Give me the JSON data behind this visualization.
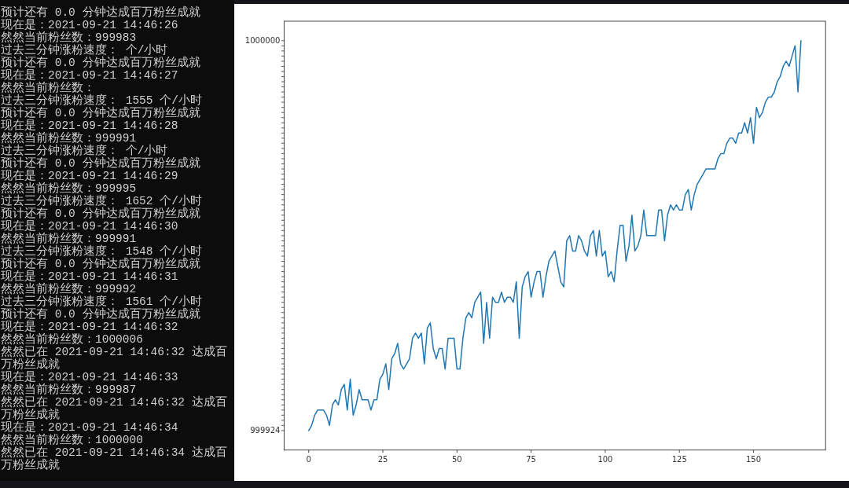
{
  "chart_data": [
    {
      "type": "other",
      "annotations": [
        "预计还有 0.0 分钟达成百万粉丝成就",
        "现在是：2021-09-21 14:46:26",
        "然然当前粉丝数：999983",
        "过去三分钟涨粉速度： 个/小时",
        "预计还有 0.0 分钟达成百万粉丝成就",
        "现在是：2021-09-21 14:46:27",
        "然然当前粉丝数：",
        "过去三分钟涨粉速度： 1555 个/小时",
        "预计还有 0.0 分钟达成百万粉丝成就",
        "现在是：2021-09-21 14:46:28",
        "然然当前粉丝数：999991",
        "过去三分钟涨粉速度： 个/小时",
        "预计还有 0.0 分钟达成百万粉丝成就",
        "现在是：2021-09-21 14:46:29",
        "然然当前粉丝数：999995",
        "过去三分钟涨粉速度： 1652 个/小时",
        "预计还有 0.0 分钟达成百万粉丝成就",
        "现在是：2021-09-21 14:46:30",
        "然然当前粉丝数：999991",
        "过去三分钟涨粉速度： 1548 个/小时",
        "预计还有 0.0 分钟达成百万粉丝成就",
        "现在是：2021-09-21 14:46:31",
        "然然当前粉丝数：999992",
        "过去三分钟涨粉速度： 1561 个/小时",
        "预计还有 0.0 分钟达成百万粉丝成就",
        "现在是：2021-09-21 14:46:32",
        "然然当前粉丝数：1000006",
        "然然已在 2021-09-21 14:46:32 达成百",
        "万粉丝成就",
        "现在是：2021-09-21 14:46:33",
        "然然当前粉丝数：999987",
        "然然已在 2021-09-21 14:46:32 达成百",
        "万粉丝成就",
        "现在是：2021-09-21 14:46:34",
        "然然当前粉丝数：1000000",
        "然然已在 2021-09-21 14:46:34 达成百",
        "万粉丝成就"
      ]
    },
    {
      "type": "line",
      "color": "#1f77b4",
      "x": [
        0,
        1,
        2,
        3,
        4,
        5,
        6,
        7,
        8,
        9,
        10,
        11,
        12,
        13,
        14,
        15,
        16,
        17,
        18,
        19,
        20,
        21,
        22,
        23,
        24,
        25,
        26,
        27,
        28,
        29,
        30,
        31,
        32,
        33,
        34,
        35,
        36,
        37,
        38,
        39,
        40,
        41,
        42,
        43,
        44,
        45,
        46,
        47,
        48,
        49,
        50,
        51,
        52,
        53,
        54,
        55,
        56,
        57,
        58,
        59,
        60,
        61,
        62,
        63,
        64,
        65,
        66,
        67,
        68,
        69,
        70,
        71,
        72,
        73,
        74,
        75,
        76,
        77,
        78,
        79,
        80,
        81,
        82,
        83,
        84,
        85,
        86,
        87,
        88,
        89,
        90,
        91,
        92,
        93,
        94,
        95,
        96,
        97,
        98,
        99,
        100,
        101,
        102,
        103,
        104,
        105,
        106,
        107,
        108,
        109,
        110,
        111,
        112,
        113,
        114,
        115,
        116,
        117,
        118,
        119,
        120,
        121,
        122,
        123,
        124,
        125,
        126,
        127,
        128,
        129,
        130,
        131,
        132,
        133,
        134,
        135,
        136,
        137,
        138,
        139,
        140,
        141,
        142,
        143,
        144,
        145,
        146,
        147,
        148,
        149,
        150,
        151,
        152,
        153,
        154,
        155,
        156,
        157,
        158,
        159,
        160,
        161,
        162,
        163,
        164,
        165,
        166
      ],
      "values": [
        999924,
        999925,
        999927,
        999928,
        999928,
        999928,
        999927,
        999925,
        999929,
        999930,
        999929,
        999932,
        999933,
        999928,
        999934,
        999927,
        999929,
        999932,
        999930,
        999930,
        999930,
        999928,
        999930,
        999930,
        999934,
        999935,
        999937,
        999932,
        999938,
        999939,
        999941,
        999937,
        999936,
        999937,
        999938,
        999942,
        999943,
        999942,
        999943,
        999937,
        999944,
        999945,
        999940,
        999938,
        999940,
        999940,
        999936,
        999942,
        999942,
        999942,
        999936,
        999936,
        999942,
        999946,
        999947,
        999946,
        999949,
        999950,
        999951,
        999941,
        999949,
        999942,
        999950,
        999949,
        999949,
        999951,
        999949,
        999950,
        999950,
        999949,
        999953,
        999942,
        999952,
        999954,
        999955,
        999950,
        999953,
        999955,
        999955,
        999950,
        999954,
        999957,
        999958,
        999959,
        999956,
        999953,
        999952,
        999961,
        999962,
        999959,
        999959,
        999962,
        999961,
        999959,
        999958,
        999962,
        999963,
        999958,
        999963,
        999958,
        999959,
        999954,
        999955,
        999953,
        999959,
        999964,
        999964,
        999957,
        999960,
        999966,
        999959,
        999960,
        999962,
        999967,
        999962,
        999962,
        999962,
        999962,
        999967,
        999967,
        999961,
        999966,
        999968,
        999967,
        999968,
        999967,
        999967,
        999970,
        999971,
        999967,
        999970,
        999972,
        999973,
        999974,
        999975,
        999975,
        999975,
        999975,
        999977,
        999978,
        999978,
        999980,
        999981,
        999981,
        999980,
        999982,
        999982,
        999984,
        999982,
        999985,
        999980,
        999987,
        999985,
        999986,
        999988,
        999989,
        999989,
        999990,
        999992,
        999993,
        999995,
        999996,
        999995,
        999997,
        999999,
        999990,
        1000000
      ],
      "xlim": [
        -8.3,
        174.3
      ],
      "xticks": [
        0,
        25,
        50,
        75,
        100,
        125,
        150
      ],
      "ylim": [
        999920.2,
        1000003.8
      ],
      "yticks": [
        999924,
        {
          "value": 999925,
          "label": null
        },
        {
          "value": 999926,
          "label": null
        },
        {
          "value": 999927,
          "label": null
        },
        {
          "value": 999928,
          "label": null
        },
        {
          "value": 999929,
          "label": null
        },
        {
          "value": 999930,
          "label": null
        },
        {
          "value": 999931,
          "label": null
        },
        {
          "value": 999932,
          "label": null
        },
        {
          "value": 999933,
          "label": null
        },
        {
          "value": 999934,
          "label": null
        },
        {
          "value": 999935,
          "label": null
        },
        {
          "value": 999936,
          "label": null
        },
        {
          "value": 999937,
          "label": null
        },
        {
          "value": 999938,
          "label": null
        },
        {
          "value": 999939,
          "label": null
        },
        {
          "value": 999940,
          "label": null
        },
        {
          "value": 999941,
          "label": null
        },
        {
          "value": 999942,
          "label": null
        },
        {
          "value": 999943,
          "label": null
        },
        {
          "value": 999944,
          "label": null
        },
        {
          "value": 999945,
          "label": null
        },
        {
          "value": 999946,
          "label": null
        },
        {
          "value": 999947,
          "label": null
        },
        {
          "value": 999948,
          "label": null
        },
        {
          "value": 999949,
          "label": null
        },
        {
          "value": 999950,
          "label": null
        },
        {
          "value": 999951,
          "label": null
        },
        {
          "value": 999952,
          "label": null
        },
        {
          "value": 999953,
          "label": null
        },
        {
          "value": 999954,
          "label": null
        },
        {
          "value": 999955,
          "label": null
        },
        {
          "value": 999956,
          "label": null
        },
        {
          "value": 999957,
          "label": null
        },
        {
          "value": 999958,
          "label": null
        },
        {
          "value": 999959,
          "label": null
        },
        {
          "value": 999960,
          "label": null
        },
        {
          "value": 999961,
          "label": null
        },
        {
          "value": 999962,
          "label": null
        },
        {
          "value": 999963,
          "label": null
        },
        {
          "value": 999964,
          "label": null
        },
        {
          "value": 999965,
          "label": null
        },
        {
          "value": 999966,
          "label": null
        },
        {
          "value": 999967,
          "label": null
        },
        {
          "value": 999968,
          "label": null
        },
        {
          "value": 999969,
          "label": null
        },
        {
          "value": 999970,
          "label": null
        },
        {
          "value": 999971,
          "label": null
        },
        {
          "value": 999972,
          "label": null
        },
        {
          "value": 999973,
          "label": null
        },
        {
          "value": 999974,
          "label": null
        },
        {
          "value": 999975,
          "label": null
        },
        {
          "value": 999976,
          "label": null
        },
        {
          "value": 999977,
          "label": null
        },
        {
          "value": 999978,
          "label": null
        },
        {
          "value": 999979,
          "label": null
        },
        {
          "value": 999980,
          "label": null
        },
        {
          "value": 999981,
          "label": null
        },
        {
          "value": 999982,
          "label": null
        },
        {
          "value": 999983,
          "label": null
        },
        {
          "value": 999984,
          "label": null
        },
        {
          "value": 999985,
          "label": null
        },
        {
          "value": 999986,
          "label": null
        },
        {
          "value": 999987,
          "label": null
        },
        {
          "value": 999988,
          "label": null
        },
        {
          "value": 999989,
          "label": null
        },
        {
          "value": 999990,
          "label": null
        },
        {
          "value": 999991,
          "label": null
        },
        {
          "value": 999992,
          "label": null
        },
        {
          "value": 999993,
          "label": null
        },
        {
          "value": 999994,
          "label": null
        },
        {
          "value": 999995,
          "label": null
        },
        {
          "value": 999996,
          "label": null
        },
        {
          "value": 999997,
          "label": null
        },
        {
          "value": 999998,
          "label": null
        },
        {
          "value": 999999,
          "label": null
        },
        1000000
      ]
    }
  ]
}
